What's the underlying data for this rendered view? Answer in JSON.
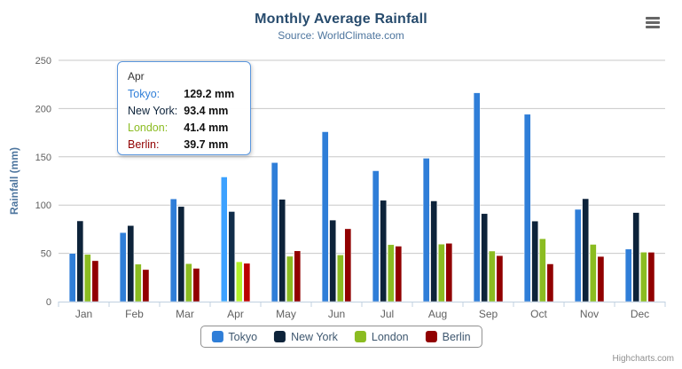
{
  "chart": {
    "title": "Monthly Average Rainfall",
    "subtitle": "Source: WorldClimate.com",
    "y_axis_title": "Rainfall (mm)",
    "credits": "Highcharts.com"
  },
  "tooltip": {
    "header": "Apr",
    "rows": [
      {
        "label": "Tokyo:",
        "value": "129.2 mm",
        "color": "#2f7ed8"
      },
      {
        "label": "New York:",
        "value": "93.4 mm",
        "color": "#0d233a"
      },
      {
        "label": "London:",
        "value": "41.4 mm",
        "color": "#8bbc21"
      },
      {
        "label": "Berlin:",
        "value": "39.7 mm",
        "color": "#910000"
      }
    ]
  },
  "colors": {
    "grid_line": "#C8C8C8",
    "axis_line": "#C0D0E0",
    "axis_label": "#606060",
    "axis_title": "#4d759e",
    "tooltip_border": "#5b96dd"
  },
  "chart_data": {
    "type": "bar",
    "title": "Monthly Average Rainfall",
    "subtitle": "Source: WorldClimate.com",
    "xlabel": "",
    "ylabel": "Rainfall (mm)",
    "ylim": [
      0,
      250
    ],
    "yticks": [
      0,
      50,
      100,
      150,
      200,
      250
    ],
    "grid": true,
    "legend_position": "bottom",
    "hovered_category": "Apr",
    "categories": [
      "Jan",
      "Feb",
      "Mar",
      "Apr",
      "May",
      "Jun",
      "Jul",
      "Aug",
      "Sep",
      "Oct",
      "Nov",
      "Dec"
    ],
    "series": [
      {
        "name": "Tokyo",
        "color": "#2f7ed8",
        "values": [
          49.9,
          71.5,
          106.4,
          129.2,
          144.0,
          176.0,
          135.6,
          148.5,
          216.4,
          194.1,
          95.6,
          54.4
        ]
      },
      {
        "name": "New York",
        "color": "#0d233a",
        "values": [
          83.6,
          78.8,
          98.5,
          93.4,
          106.0,
          84.5,
          105.0,
          104.3,
          91.2,
          83.5,
          106.6,
          92.3
        ]
      },
      {
        "name": "London",
        "color": "#8bbc21",
        "values": [
          48.9,
          38.8,
          39.3,
          41.4,
          47.0,
          48.3,
          59.0,
          59.6,
          52.4,
          65.2,
          59.3,
          51.2
        ]
      },
      {
        "name": "Berlin",
        "color": "#910000",
        "values": [
          42.4,
          33.2,
          34.5,
          39.7,
          52.6,
          75.5,
          57.4,
          60.4,
          47.6,
          39.1,
          46.8,
          51.1
        ]
      }
    ]
  }
}
